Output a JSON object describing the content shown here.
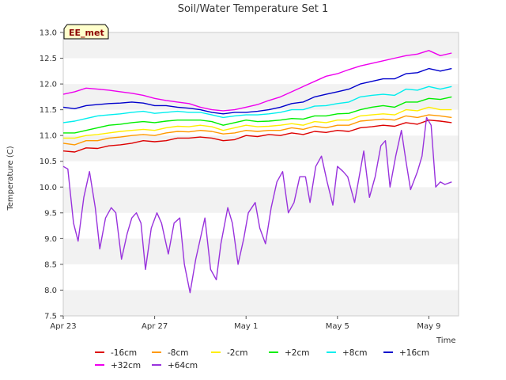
{
  "chart_data": {
    "type": "line",
    "title": "Soil/Water Temperature Set 1",
    "xlabel": "Time",
    "ylabel": "Temperature (C)",
    "badge": "EE_met",
    "xlim": [
      0,
      17.3
    ],
    "ylim": [
      7.5,
      13.0
    ],
    "yticks": [
      "7.5",
      "8.0",
      "8.5",
      "9.0",
      "9.5",
      "10.0",
      "10.5",
      "11.0",
      "11.5",
      "12.0",
      "12.5",
      "13.0"
    ],
    "xticks": [
      {
        "label": "Apr 23",
        "day": 0
      },
      {
        "label": "Apr 27",
        "day": 4
      },
      {
        "label": "May 1",
        "day": 8
      },
      {
        "label": "May 5",
        "day": 12
      },
      {
        "label": "May 9",
        "day": 16
      }
    ],
    "grid": "horizontal bands",
    "legend_position": "bottom",
    "series": [
      {
        "name": "-16cm",
        "color": "#dd0000",
        "x": [
          0,
          0.5,
          1,
          1.5,
          2,
          2.5,
          3,
          3.5,
          4,
          4.5,
          5,
          5.5,
          6,
          6.5,
          7,
          7.5,
          8,
          8.5,
          9,
          9.5,
          10,
          10.5,
          11,
          11.5,
          12,
          12.5,
          13,
          13.5,
          14,
          14.5,
          15,
          15.5,
          16,
          16.5,
          17
        ],
        "y": [
          10.7,
          10.68,
          10.76,
          10.75,
          10.8,
          10.82,
          10.85,
          10.9,
          10.88,
          10.9,
          10.95,
          10.95,
          10.97,
          10.95,
          10.9,
          10.92,
          11.0,
          10.98,
          11.02,
          11.0,
          11.05,
          11.02,
          11.08,
          11.06,
          11.1,
          11.08,
          11.15,
          11.17,
          11.2,
          11.18,
          11.25,
          11.22,
          11.3,
          11.28,
          11.25
        ]
      },
      {
        "name": "-8cm",
        "color": "#ff9900",
        "x": [
          0,
          0.5,
          1,
          1.5,
          2,
          2.5,
          3,
          3.5,
          4,
          4.5,
          5,
          5.5,
          6,
          6.5,
          7,
          7.5,
          8,
          8.5,
          9,
          9.5,
          10,
          10.5,
          11,
          11.5,
          12,
          12.5,
          13,
          13.5,
          14,
          14.5,
          15,
          15.5,
          16,
          16.5,
          17
        ],
        "y": [
          10.85,
          10.82,
          10.9,
          10.9,
          10.95,
          10.97,
          11.0,
          11.02,
          11.0,
          11.05,
          11.08,
          11.07,
          11.1,
          11.08,
          11.03,
          11.05,
          11.1,
          11.08,
          11.1,
          11.1,
          11.15,
          11.12,
          11.18,
          11.15,
          11.2,
          11.2,
          11.28,
          11.3,
          11.32,
          11.3,
          11.38,
          11.35,
          11.4,
          11.38,
          11.35
        ]
      },
      {
        "name": "-2cm",
        "color": "#ffee00",
        "x": [
          0,
          0.5,
          1,
          1.5,
          2,
          2.5,
          3,
          3.5,
          4,
          4.5,
          5,
          5.5,
          6,
          6.5,
          7,
          7.5,
          8,
          8.5,
          9,
          9.5,
          10,
          10.5,
          11,
          11.5,
          12,
          12.5,
          13,
          13.5,
          14,
          14.5,
          15,
          15.5,
          16,
          16.5,
          17
        ],
        "y": [
          10.95,
          10.95,
          11.0,
          11.02,
          11.05,
          11.08,
          11.1,
          11.12,
          11.1,
          11.15,
          11.18,
          11.17,
          11.2,
          11.17,
          11.1,
          11.15,
          11.2,
          11.17,
          11.18,
          11.2,
          11.23,
          11.2,
          11.27,
          11.25,
          11.3,
          11.3,
          11.38,
          11.4,
          11.42,
          11.4,
          11.5,
          11.48,
          11.55,
          11.5,
          11.5
        ]
      },
      {
        "name": "+2cm",
        "color": "#00ee00",
        "x": [
          0,
          0.5,
          1,
          1.5,
          2,
          2.5,
          3,
          3.5,
          4,
          4.5,
          5,
          5.5,
          6,
          6.5,
          7,
          7.5,
          8,
          8.5,
          9,
          9.5,
          10,
          10.5,
          11,
          11.5,
          12,
          12.5,
          13,
          13.5,
          14,
          14.5,
          15,
          15.5,
          16,
          16.5,
          17
        ],
        "y": [
          11.05,
          11.05,
          11.1,
          11.15,
          11.2,
          11.22,
          11.25,
          11.27,
          11.25,
          11.28,
          11.3,
          11.3,
          11.3,
          11.27,
          11.2,
          11.25,
          11.3,
          11.27,
          11.28,
          11.3,
          11.33,
          11.32,
          11.38,
          11.38,
          11.42,
          11.43,
          11.5,
          11.55,
          11.58,
          11.55,
          11.65,
          11.65,
          11.72,
          11.7,
          11.75
        ]
      },
      {
        "name": "+8cm",
        "color": "#00eeee",
        "x": [
          0,
          0.5,
          1,
          1.5,
          2,
          2.5,
          3,
          3.5,
          4,
          4.5,
          5,
          5.5,
          6,
          6.5,
          7,
          7.5,
          8,
          8.5,
          9,
          9.5,
          10,
          10.5,
          11,
          11.5,
          12,
          12.5,
          13,
          13.5,
          14,
          14.5,
          15,
          15.5,
          16,
          16.5,
          17
        ],
        "y": [
          11.25,
          11.28,
          11.33,
          11.38,
          11.4,
          11.42,
          11.45,
          11.47,
          11.43,
          11.45,
          11.47,
          11.45,
          11.45,
          11.4,
          11.35,
          11.38,
          11.4,
          11.4,
          11.42,
          11.45,
          11.5,
          11.5,
          11.57,
          11.58,
          11.62,
          11.65,
          11.75,
          11.78,
          11.8,
          11.78,
          11.9,
          11.88,
          11.95,
          11.9,
          11.95
        ]
      },
      {
        "name": "+16cm",
        "color": "#0000cc",
        "x": [
          0,
          0.5,
          1,
          1.5,
          2,
          2.5,
          3,
          3.5,
          4,
          4.5,
          5,
          5.5,
          6,
          6.5,
          7,
          7.5,
          8,
          8.5,
          9,
          9.5,
          10,
          10.5,
          11,
          11.5,
          12,
          12.5,
          13,
          13.5,
          14,
          14.5,
          15,
          15.5,
          16,
          16.5,
          17
        ],
        "y": [
          11.55,
          11.52,
          11.58,
          11.6,
          11.62,
          11.63,
          11.65,
          11.63,
          11.58,
          11.58,
          11.55,
          11.53,
          11.5,
          11.45,
          11.42,
          11.45,
          11.45,
          11.47,
          11.5,
          11.55,
          11.62,
          11.65,
          11.75,
          11.8,
          11.85,
          11.9,
          12.0,
          12.05,
          12.1,
          12.1,
          12.2,
          12.22,
          12.3,
          12.25,
          12.3
        ]
      },
      {
        "name": "+32cm",
        "color": "#ee00ee",
        "x": [
          0,
          0.5,
          1,
          1.5,
          2,
          2.5,
          3,
          3.5,
          4,
          4.5,
          5,
          5.5,
          6,
          6.5,
          7,
          7.5,
          8,
          8.5,
          9,
          9.5,
          10,
          10.5,
          11,
          11.5,
          12,
          12.5,
          13,
          13.5,
          14,
          14.5,
          15,
          15.5,
          16,
          16.5,
          17
        ],
        "y": [
          11.8,
          11.85,
          11.92,
          11.9,
          11.88,
          11.85,
          11.82,
          11.78,
          11.72,
          11.68,
          11.65,
          11.62,
          11.55,
          11.5,
          11.48,
          11.5,
          11.55,
          11.6,
          11.68,
          11.75,
          11.85,
          11.95,
          12.05,
          12.15,
          12.2,
          12.28,
          12.35,
          12.4,
          12.45,
          12.5,
          12.55,
          12.58,
          12.65,
          12.55,
          12.6
        ]
      },
      {
        "name": "+64cm",
        "color": "#9933dd",
        "x": [
          0,
          0.2,
          0.45,
          0.65,
          0.9,
          1.15,
          1.4,
          1.6,
          1.85,
          2.1,
          2.3,
          2.55,
          2.8,
          3.0,
          3.2,
          3.4,
          3.6,
          3.85,
          4.1,
          4.3,
          4.6,
          4.85,
          5.1,
          5.3,
          5.55,
          5.8,
          6.0,
          6.2,
          6.45,
          6.7,
          6.9,
          7.2,
          7.4,
          7.65,
          7.9,
          8.1,
          8.4,
          8.6,
          8.85,
          9.1,
          9.35,
          9.6,
          9.85,
          10.1,
          10.35,
          10.6,
          10.8,
          11.05,
          11.3,
          11.55,
          11.8,
          12.0,
          12.25,
          12.45,
          12.75,
          12.95,
          13.15,
          13.4,
          13.65,
          13.9,
          14.1,
          14.3,
          14.55,
          14.8,
          15.0,
          15.2,
          15.5,
          15.7,
          15.9,
          16.1,
          16.3,
          16.5,
          16.7,
          17.0
        ],
        "y": [
          10.4,
          10.35,
          9.3,
          8.95,
          9.8,
          10.3,
          9.6,
          8.8,
          9.4,
          9.6,
          9.5,
          8.6,
          9.1,
          9.4,
          9.5,
          9.3,
          8.4,
          9.2,
          9.5,
          9.3,
          8.7,
          9.3,
          9.4,
          8.5,
          7.95,
          8.6,
          9.0,
          9.4,
          8.4,
          8.2,
          8.9,
          9.6,
          9.3,
          8.5,
          9.0,
          9.5,
          9.7,
          9.2,
          8.9,
          9.6,
          10.1,
          10.3,
          9.5,
          9.7,
          10.2,
          10.2,
          9.7,
          10.4,
          10.6,
          10.1,
          9.65,
          10.4,
          10.3,
          10.2,
          9.7,
          10.2,
          10.7,
          9.8,
          10.2,
          10.8,
          10.9,
          10.0,
          10.6,
          11.1,
          10.5,
          9.95,
          10.3,
          10.6,
          11.35,
          11.2,
          10.0,
          10.1,
          10.05,
          10.1
        ]
      }
    ]
  }
}
